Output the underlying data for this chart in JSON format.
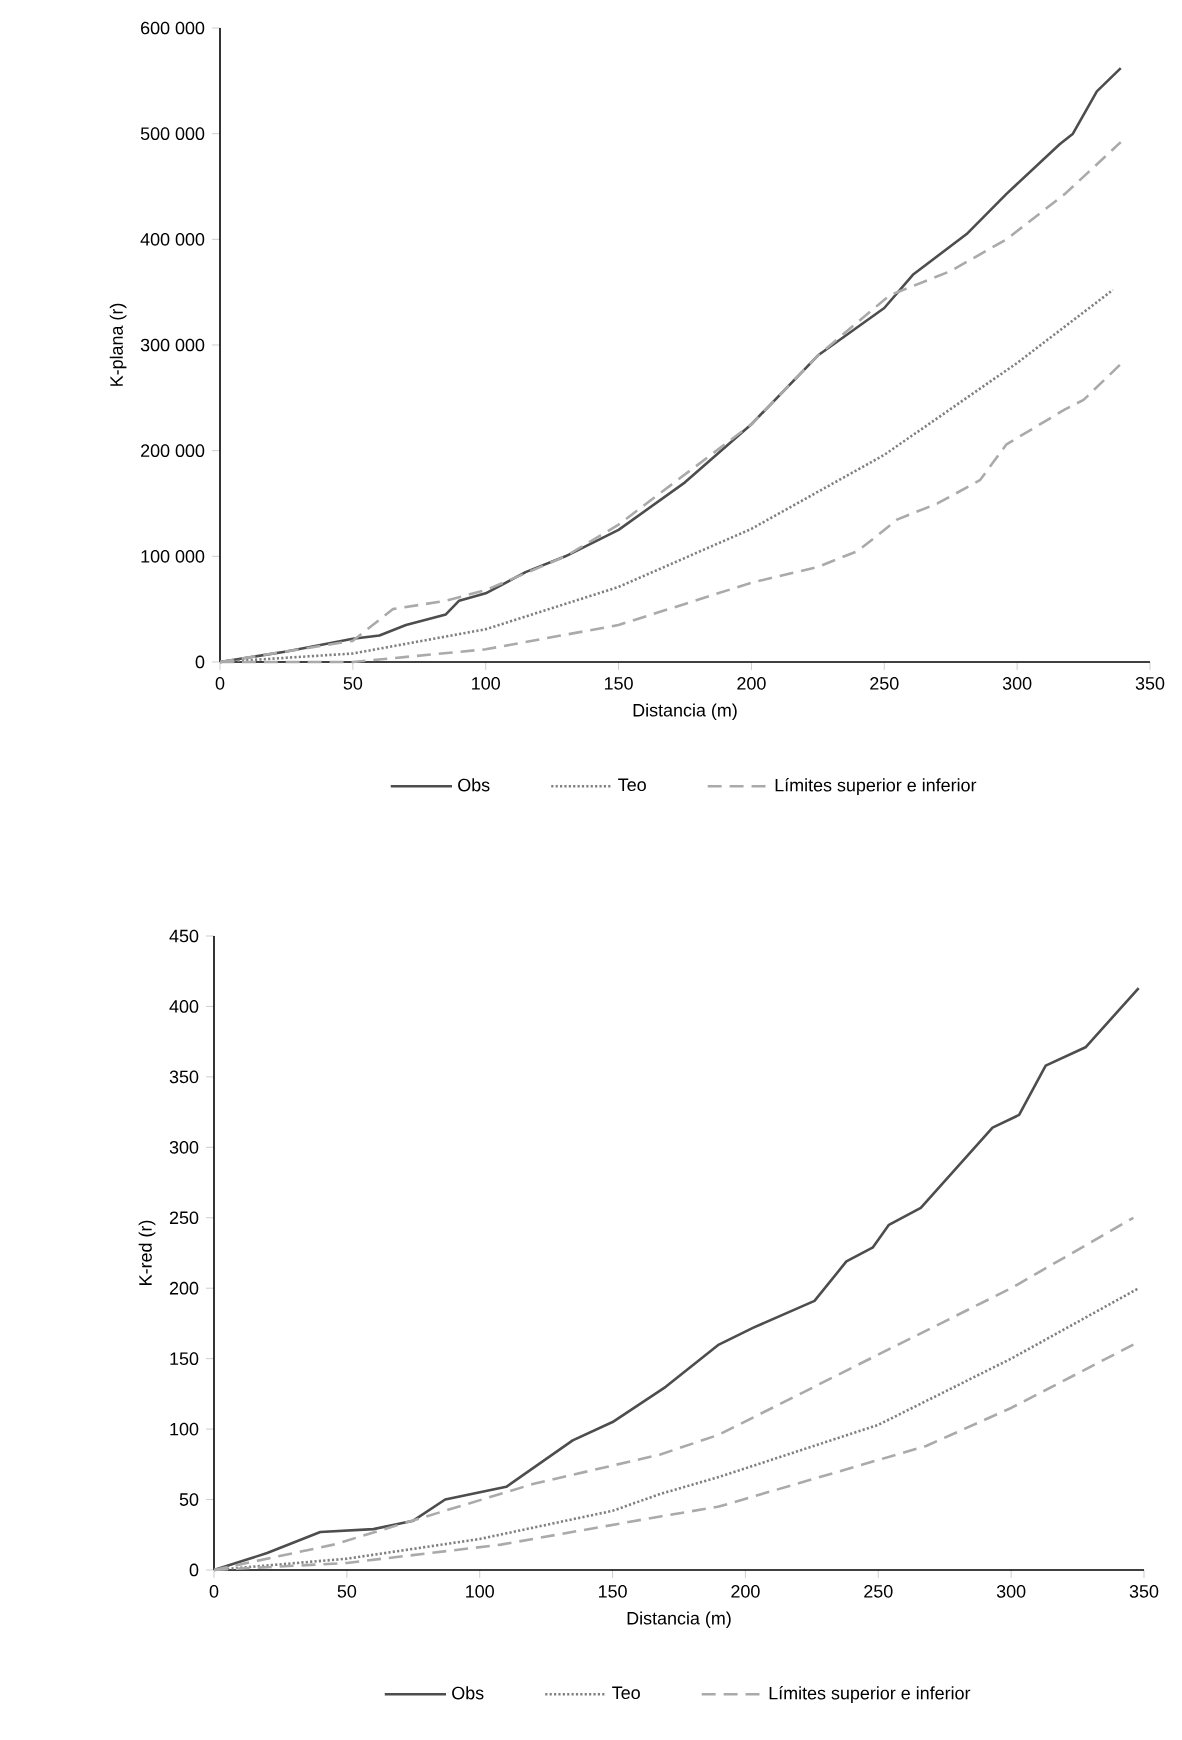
{
  "chart_data": [
    {
      "type": "line",
      "xlabel": "Distancia (m)",
      "ylabel": "K-plana (r)",
      "xlim": [
        0,
        350
      ],
      "ylim": [
        0,
        600000
      ],
      "xticks": [
        0,
        50,
        100,
        150,
        200,
        250,
        300,
        350
      ],
      "yticks": [
        0,
        {
          "value": 100000,
          "label": "100 000"
        },
        {
          "value": 200000,
          "label": "200 000"
        },
        {
          "value": 300000,
          "label": "300 000"
        },
        {
          "value": 400000,
          "label": "400 000"
        },
        {
          "value": 500000,
          "label": "500 000"
        },
        {
          "value": 600000,
          "label": "600 000"
        }
      ],
      "legend": "bottom",
      "series": [
        {
          "name": "Obs",
          "color": "#4d4d4d",
          "line_style": "solid",
          "x": [
            0,
            25,
            50,
            60,
            70,
            85,
            90,
            100,
            115,
            130,
            150,
            175,
            200,
            225,
            250,
            261,
            281,
            296,
            316,
            321,
            330,
            339
          ],
          "values": [
            0,
            10000,
            22000,
            25000,
            35000,
            45000,
            58000,
            65000,
            85000,
            100000,
            125000,
            170000,
            225000,
            290000,
            335000,
            367000,
            405000,
            443000,
            490000,
            500000,
            540000,
            562000
          ]
        },
        {
          "name": "Teo",
          "color": "#808080",
          "line_style": "dotted",
          "x": [
            0,
            50,
            100,
            150,
            200,
            250,
            300,
            336
          ],
          "values": [
            0,
            8000,
            31000,
            71000,
            126000,
            196000,
            283000,
            352000
          ]
        },
        {
          "name": "Límites superior e inferior",
          "color": "#aaaaaa",
          "line_style": "dashed",
          "x": [
            0,
            50,
            65,
            85,
            100,
            130,
            150,
            200,
            225,
            252,
            275,
            296,
            318,
            339
          ],
          "values": [
            0,
            20000,
            50000,
            58000,
            68000,
            100000,
            130000,
            225000,
            290000,
            347000,
            370000,
            400000,
            443000,
            492000
          ]
        },
        {
          "color": "#aaaaaa",
          "line_style": "dashed",
          "x": [
            0,
            50,
            100,
            150,
            200,
            225,
            240,
            255,
            270,
            286,
            296,
            318,
            325,
            339
          ],
          "values": [
            0,
            0,
            12000,
            35000,
            75000,
            90000,
            105000,
            135000,
            150000,
            172000,
            206000,
            239000,
            248000,
            282000
          ]
        }
      ]
    },
    {
      "type": "line",
      "xlabel": "Distancia (m)",
      "ylabel": "K-red (r)",
      "xlim": [
        0,
        350
      ],
      "ylim": [
        0,
        450
      ],
      "xticks": [
        0,
        50,
        100,
        150,
        200,
        250,
        300,
        350
      ],
      "yticks": [
        0,
        50,
        100,
        150,
        200,
        250,
        300,
        350,
        400,
        450
      ],
      "legend": "bottom",
      "series": [
        {
          "name": "Obs",
          "color": "#4d4d4d",
          "line_style": "solid",
          "x": [
            0,
            20,
            40,
            60,
            75,
            87,
            110,
            135,
            150,
            170,
            190,
            203,
            226,
            238,
            248,
            254,
            266,
            293,
            303,
            313,
            328,
            348
          ],
          "values": [
            0,
            12,
            27,
            29,
            35,
            50,
            59,
            92,
            105,
            130,
            160,
            172,
            191,
            219,
            229,
            245,
            257,
            314,
            323,
            358,
            371,
            413
          ]
        },
        {
          "name": "Teo",
          "color": "#808080",
          "line_style": "dotted",
          "x": [
            0,
            50,
            100,
            150,
            168,
            190,
            250,
            300,
            348
          ],
          "values": [
            0,
            8,
            22,
            42,
            54,
            66,
            103,
            150,
            200
          ]
        },
        {
          "name": "Límites superior e inferior",
          "color": "#aaaaaa",
          "line_style": "dashed",
          "x": [
            0,
            45,
            120,
            168,
            190,
            248,
            300,
            346
          ],
          "values": [
            0,
            18,
            61,
            82,
            96,
            151,
            200,
            250
          ]
        },
        {
          "color": "#aaaaaa",
          "line_style": "dashed",
          "x": [
            0,
            50,
            108,
            168,
            190,
            268,
            300,
            346
          ],
          "values": [
            0,
            5,
            18,
            38,
            45,
            88,
            115,
            160
          ]
        }
      ]
    }
  ]
}
